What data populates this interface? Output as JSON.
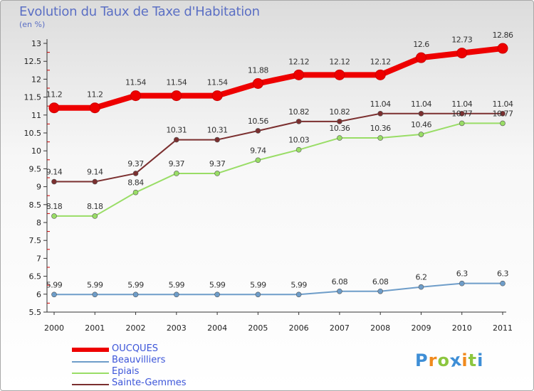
{
  "title": "Evolution du Taux de Taxe d'Habitation",
  "subtitle": "(en %)",
  "logo_text": "Proxiti",
  "chart_data": {
    "type": "line",
    "title": "Evolution du Taux de Taxe d'Habitation",
    "ylabel": "(en %)",
    "x": [
      "2000",
      "2001",
      "2002",
      "2003",
      "2004",
      "2005",
      "2006",
      "2007",
      "2008",
      "2009",
      "2010",
      "2011"
    ],
    "ylim": [
      5.5,
      13
    ],
    "yticks": [
      "5.5",
      "6",
      "6.5",
      "7",
      "7.5",
      "8",
      "8.5",
      "9",
      "9.5",
      "10",
      "10.5",
      "11",
      "11.5",
      "12",
      "12.5",
      "13"
    ],
    "grid": false,
    "legend_position": "bottom-left",
    "series": [
      {
        "name": "OUCQUES",
        "color": "#ee0000",
        "values": [
          11.2,
          11.2,
          11.54,
          11.54,
          11.54,
          11.88,
          12.12,
          12.12,
          12.12,
          12.6,
          12.73,
          12.86
        ],
        "labels": [
          "11.2",
          "11.2",
          "11.54",
          "11.54",
          "11.54",
          "11.88",
          "12.12",
          "12.12",
          "12.12",
          "12.6",
          "12.73",
          "12.86"
        ]
      },
      {
        "name": "Beauvilliers",
        "color": "#6e9dc9",
        "values": [
          5.99,
          5.99,
          5.99,
          5.99,
          5.99,
          5.99,
          5.99,
          6.08,
          6.08,
          6.2,
          6.3,
          6.3
        ],
        "labels": [
          "5.99",
          "5.99",
          "5.99",
          "5.99",
          "5.99",
          "5.99",
          "5.99",
          "6.08",
          "6.08",
          "6.2",
          "6.3",
          "6.3"
        ]
      },
      {
        "name": "Epiais",
        "color": "#99dd66",
        "values": [
          8.18,
          8.18,
          8.84,
          9.37,
          9.37,
          9.74,
          10.03,
          10.36,
          10.36,
          10.46,
          10.77,
          10.77
        ],
        "labels": [
          "8.18",
          "8.18",
          "8.84",
          "9.37",
          "9.37",
          "9.74",
          "10.03",
          "10.36",
          "10.36",
          "10.46",
          "10.77",
          "10.77"
        ]
      },
      {
        "name": "Sainte-Gemmes",
        "color": "#7b2f2f",
        "values": [
          9.14,
          9.14,
          9.37,
          10.31,
          10.31,
          10.56,
          10.82,
          10.82,
          11.04,
          11.04,
          11.04,
          11.04
        ],
        "labels": [
          "9.14",
          "9.14",
          "9.37",
          "10.31",
          "10.31",
          "10.56",
          "10.82",
          "10.82",
          "11.04",
          "11.04",
          "11.04",
          "11.04"
        ]
      }
    ]
  }
}
